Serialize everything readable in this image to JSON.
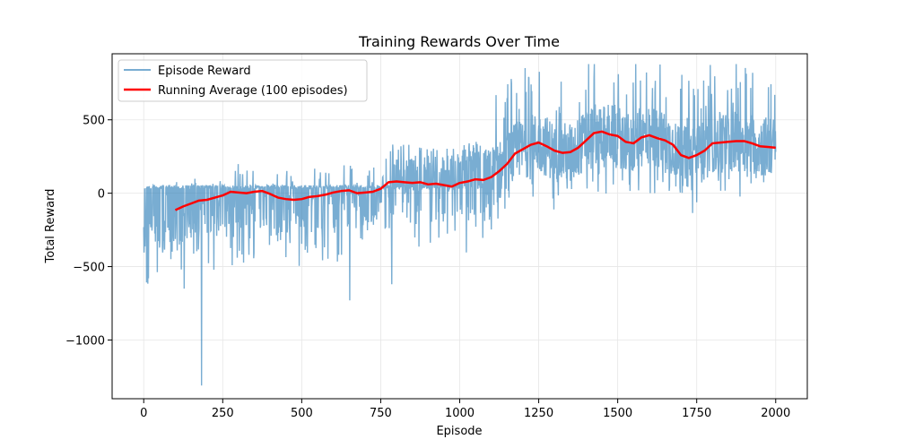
{
  "chart_data": {
    "type": "line",
    "title": "Training Rewards Over Time",
    "xlabel": "Episode",
    "ylabel": "Total Reward",
    "xlim": [
      -100,
      2100
    ],
    "ylim": [
      -1400,
      950
    ],
    "xticks": [
      0,
      250,
      500,
      750,
      1000,
      1250,
      1500,
      1750,
      2000
    ],
    "xtick_labels": [
      "0",
      "250",
      "500",
      "750",
      "1000",
      "1250",
      "1500",
      "1750",
      "2000"
    ],
    "yticks": [
      -1000,
      -500,
      0,
      500
    ],
    "ytick_labels": [
      "−1000",
      "−500",
      "0",
      "500"
    ],
    "grid": true,
    "legend_position": "top-left",
    "series": [
      {
        "name": "Episode Reward",
        "color": "#1f77b4",
        "style": "thin-noisy",
        "summary": {
          "x_range": [
            0,
            2000
          ],
          "min": -1310,
          "max": 880,
          "notable_dips": [
            {
              "x": 183,
              "y": -1310
            },
            {
              "x": 652,
              "y": -730
            },
            {
              "x": 785,
              "y": -620
            },
            {
              "x": 128,
              "y": -650
            },
            {
              "x": 15,
              "y": -580
            }
          ]
        }
      },
      {
        "name": "Running Average (100 episodes)",
        "color": "#ff0000",
        "style": "thick",
        "x": [
          100,
          125,
          150,
          175,
          200,
          225,
          250,
          275,
          300,
          325,
          350,
          375,
          400,
          425,
          450,
          475,
          500,
          525,
          550,
          575,
          600,
          625,
          650,
          675,
          700,
          725,
          750,
          775,
          800,
          825,
          850,
          875,
          900,
          925,
          950,
          975,
          1000,
          1025,
          1050,
          1075,
          1100,
          1125,
          1150,
          1175,
          1200,
          1225,
          1250,
          1275,
          1300,
          1325,
          1350,
          1375,
          1400,
          1425,
          1450,
          1475,
          1500,
          1525,
          1550,
          1575,
          1600,
          1625,
          1650,
          1675,
          1700,
          1725,
          1750,
          1775,
          1800,
          1825,
          1850,
          1875,
          1900,
          1925,
          1950,
          1975,
          2000
        ],
        "values": [
          -115,
          -90,
          -70,
          -50,
          -45,
          -30,
          -15,
          10,
          5,
          0,
          10,
          15,
          -5,
          -30,
          -40,
          -45,
          -40,
          -25,
          -20,
          -10,
          5,
          15,
          20,
          0,
          5,
          10,
          30,
          75,
          80,
          75,
          70,
          75,
          60,
          65,
          55,
          45,
          70,
          80,
          95,
          90,
          110,
          150,
          200,
          270,
          300,
          330,
          345,
          320,
          290,
          275,
          280,
          310,
          360,
          410,
          420,
          400,
          390,
          350,
          340,
          380,
          395,
          375,
          360,
          330,
          260,
          240,
          260,
          290,
          340,
          345,
          350,
          355,
          355,
          340,
          320,
          315,
          310
        ]
      }
    ]
  }
}
